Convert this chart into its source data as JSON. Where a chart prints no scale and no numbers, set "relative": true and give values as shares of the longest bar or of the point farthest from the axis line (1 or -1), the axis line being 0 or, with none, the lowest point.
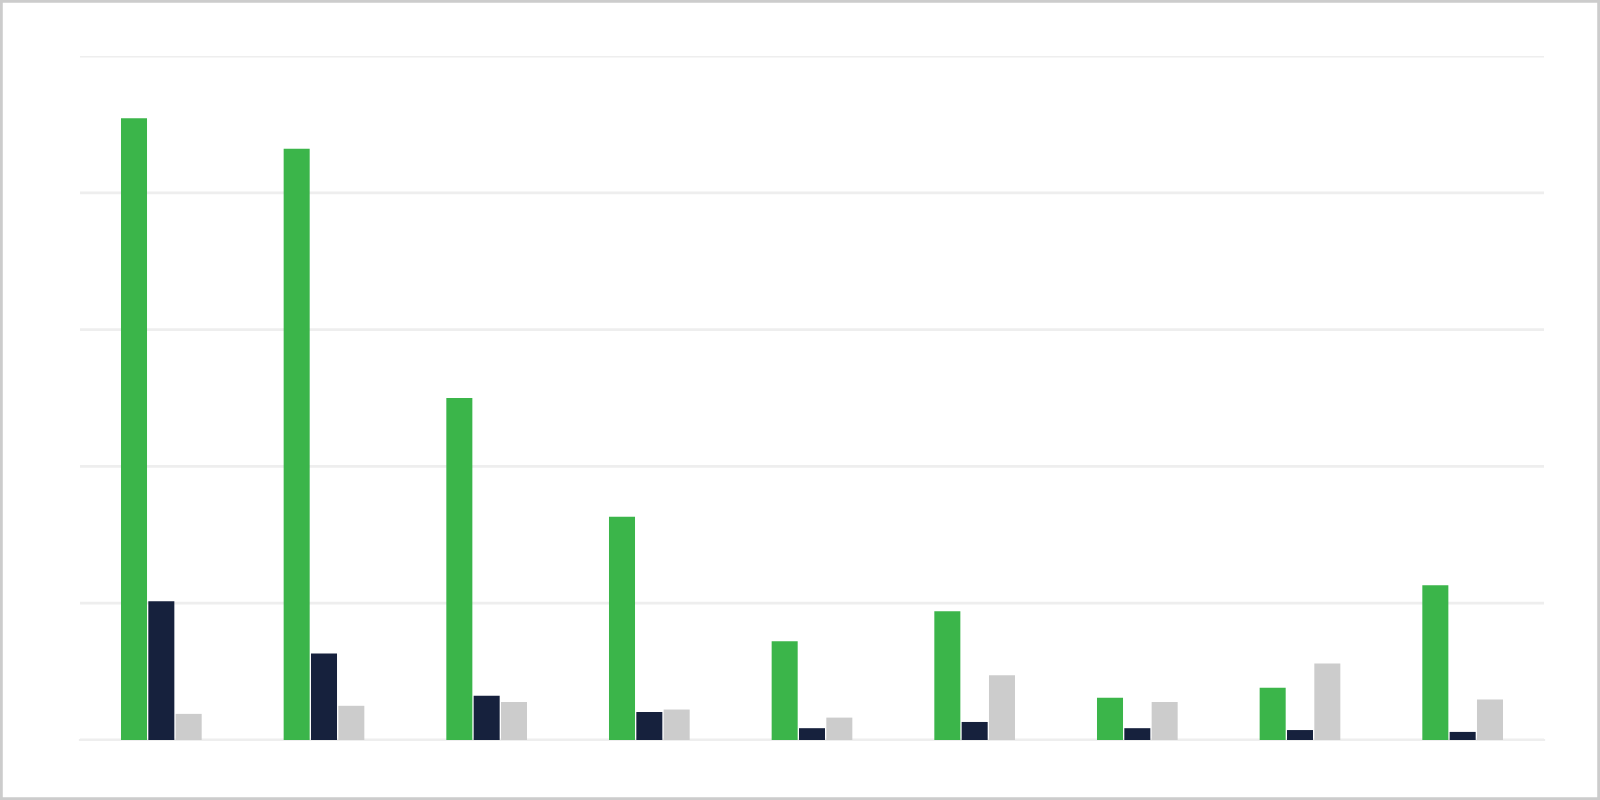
{
  "chart_data": {
    "type": "bar",
    "relative": true,
    "categories": [
      null,
      null,
      null,
      null,
      null,
      null,
      null,
      null,
      null
    ],
    "series": [
      {
        "color": "#3bb54a",
        "values": [
          1,
          0.951,
          0.55,
          0.359,
          0.159,
          0.207,
          0.068,
          0.084,
          0.249
        ]
      },
      {
        "color": "#16213d",
        "values": [
          0.223,
          0.139,
          0.071,
          0.045,
          0.019,
          0.029,
          0.019,
          0.016,
          0.013
        ]
      },
      {
        "color": "#cccccc",
        "values": [
          0.042,
          0.055,
          0.061,
          0.049,
          0.036,
          0.104,
          0.061,
          0.123,
          0.065
        ]
      }
    ],
    "grid": "y"
  }
}
